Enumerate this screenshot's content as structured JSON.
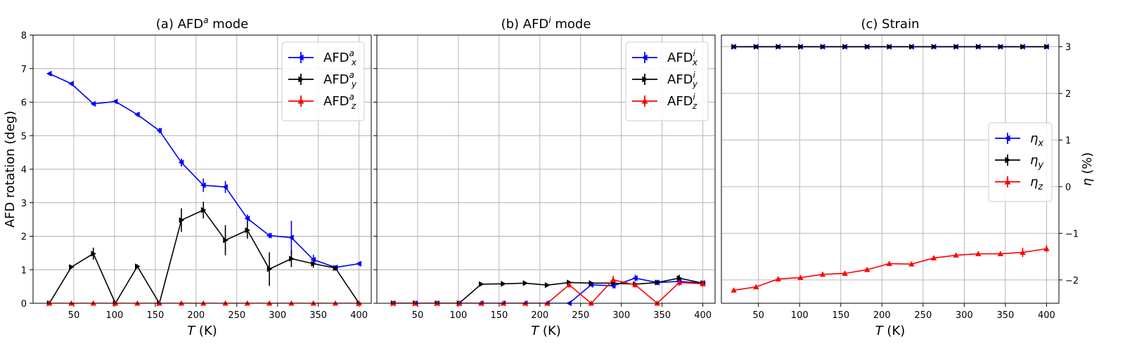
{
  "chart_data": [
    {
      "id": "a",
      "type": "line",
      "title": "(a) AFD^a mode",
      "title_parts": {
        "pre": "(a) AFD",
        "sup": "a",
        "post": " mode"
      },
      "xlabel": "T (K)",
      "xlabel_parts": {
        "var": "T",
        "unit": " (K)"
      },
      "ylabel": "AFD rotation (deg)",
      "xlim": [
        0,
        415
      ],
      "ylim": [
        0,
        8
      ],
      "xticks": [
        50,
        100,
        150,
        200,
        250,
        300,
        350,
        400
      ],
      "yticks": [
        0,
        1,
        2,
        3,
        4,
        5,
        6,
        7,
        8
      ],
      "grid": true,
      "legend_position": "top-right",
      "x": [
        20,
        47,
        74,
        101,
        128,
        155,
        182,
        209,
        236,
        263,
        290,
        317,
        344,
        371,
        400
      ],
      "series": [
        {
          "name": "AFD^a_x",
          "label_base": "AFD",
          "label_sup": "a",
          "label_sub": "x",
          "color": "#0000ff",
          "marker": "triangle-left",
          "values": [
            6.85,
            6.55,
            5.95,
            6.02,
            5.63,
            5.15,
            4.2,
            3.52,
            3.47,
            2.53,
            2.02,
            1.96,
            1.3,
            1.07,
            1.18
          ],
          "errors": [
            0.03,
            0.05,
            0.05,
            0.05,
            0.06,
            0.08,
            0.12,
            0.2,
            0.18,
            0.12,
            0.08,
            0.5,
            0.15,
            0.06,
            0.06
          ]
        },
        {
          "name": "AFD^a_y",
          "label_base": "AFD",
          "label_sup": "a",
          "label_sub": "y",
          "color": "#000000",
          "marker": "triangle-right",
          "values": [
            0.0,
            1.08,
            1.48,
            0.0,
            1.1,
            0.0,
            2.48,
            2.78,
            1.88,
            2.18,
            1.02,
            1.33,
            1.18,
            1.05,
            0.0
          ],
          "errors": [
            0.02,
            0.05,
            0.18,
            0.02,
            0.06,
            0.02,
            0.35,
            0.25,
            0.45,
            0.25,
            0.5,
            0.25,
            0.12,
            0.08,
            0.02
          ]
        },
        {
          "name": "AFD^a_z",
          "label_base": "AFD",
          "label_sup": "a",
          "label_sub": "z",
          "color": "#ff0000",
          "marker": "triangle-up",
          "values": [
            0,
            0,
            0,
            0,
            0,
            0,
            0,
            0,
            0,
            0,
            0,
            0,
            0,
            0,
            0
          ],
          "errors": [
            0.02,
            0.02,
            0.02,
            0.02,
            0.02,
            0.02,
            0.02,
            0.02,
            0.02,
            0.02,
            0.02,
            0.02,
            0.02,
            0.02,
            0.02
          ]
        }
      ]
    },
    {
      "id": "b",
      "type": "line",
      "title": "(b) AFD^i mode",
      "title_parts": {
        "pre": "(b) AFD",
        "sup": "i",
        "post": " mode"
      },
      "xlabel": "T (K)",
      "xlabel_parts": {
        "var": "T",
        "unit": " (K)"
      },
      "xlim": [
        0,
        415
      ],
      "ylim": [
        0,
        8
      ],
      "xticks": [
        50,
        100,
        150,
        200,
        250,
        300,
        350,
        400
      ],
      "yticks": [
        0,
        1,
        2,
        3,
        4,
        5,
        6,
        7,
        8
      ],
      "grid": true,
      "legend_position": "top-right",
      "x": [
        20,
        47,
        74,
        101,
        128,
        155,
        182,
        209,
        236,
        263,
        290,
        317,
        344,
        371,
        400
      ],
      "series": [
        {
          "name": "AFD^i_x",
          "label_base": "AFD",
          "label_sup": "i",
          "label_sub": "x",
          "color": "#0000ff",
          "marker": "triangle-left",
          "values": [
            0,
            0,
            0,
            0,
            0,
            0,
            0,
            0,
            0,
            0.55,
            0.52,
            0.75,
            0.62,
            0.65,
            0.6
          ],
          "errors": [
            0.02,
            0.02,
            0.02,
            0.02,
            0.02,
            0.02,
            0.02,
            0.02,
            0.02,
            0.05,
            0.08,
            0.1,
            0.08,
            0.12,
            0.08
          ]
        },
        {
          "name": "AFD^i_y",
          "label_base": "AFD",
          "label_sup": "i",
          "label_sub": "y",
          "color": "#000000",
          "marker": "triangle-right",
          "values": [
            0,
            0,
            0,
            0,
            0.57,
            0.58,
            0.6,
            0.54,
            0.62,
            0.6,
            0.6,
            0.57,
            0.62,
            0.75,
            0.6
          ],
          "errors": [
            0.02,
            0.02,
            0.02,
            0.02,
            0.03,
            0.03,
            0.03,
            0.03,
            0.04,
            0.04,
            0.06,
            0.06,
            0.06,
            0.1,
            0.06
          ]
        },
        {
          "name": "AFD^i_z",
          "label_base": "AFD",
          "label_sup": "i",
          "label_sub": "z",
          "color": "#ff0000",
          "marker": "triangle-up",
          "values": [
            0,
            0,
            0,
            0,
            0,
            0,
            0,
            0,
            0.55,
            0,
            0.7,
            0.55,
            0,
            0.62,
            0.58
          ],
          "errors": [
            0.02,
            0.02,
            0.02,
            0.02,
            0.02,
            0.02,
            0.02,
            0.02,
            0.08,
            0.02,
            0.12,
            0.08,
            0.02,
            0.08,
            0.08
          ]
        }
      ]
    },
    {
      "id": "c",
      "type": "line",
      "title": "(c) Strain",
      "xlabel": "T (K)",
      "xlabel_parts": {
        "var": "T",
        "unit": " (K)"
      },
      "ylabel": "η (%)",
      "ylabel_parts": {
        "var": "η",
        "unit": " (%)"
      },
      "y_axis_side": "right",
      "xlim": [
        5,
        415
      ],
      "ylim": [
        -2.5,
        3.25
      ],
      "xticks": [
        50,
        100,
        150,
        200,
        250,
        300,
        350,
        400
      ],
      "yticks": [
        -2,
        -1,
        0,
        1,
        2,
        3
      ],
      "ytick_labels": [
        "−2",
        "−1",
        "0",
        "1",
        "2",
        "3"
      ],
      "grid": true,
      "legend_position": "center-right",
      "x": [
        20,
        47,
        74,
        101,
        128,
        155,
        182,
        209,
        236,
        263,
        290,
        317,
        344,
        371,
        400
      ],
      "series": [
        {
          "name": "η_x",
          "label_base": "η",
          "label_sub": "x",
          "color": "#0000ff",
          "marker": "triangle-left",
          "values": [
            3,
            3,
            3,
            3,
            3,
            3,
            3,
            3,
            3,
            3,
            3,
            3,
            3,
            3,
            3
          ],
          "errors": [
            0.02,
            0.02,
            0.02,
            0.02,
            0.02,
            0.02,
            0.02,
            0.02,
            0.02,
            0.02,
            0.02,
            0.02,
            0.02,
            0.02,
            0.02
          ]
        },
        {
          "name": "η_y",
          "label_base": "η",
          "label_sub": "y",
          "color": "#000000",
          "marker": "triangle-right",
          "values": [
            3,
            3,
            3,
            3,
            3,
            3,
            3,
            3,
            3,
            3,
            3,
            3,
            3,
            3,
            3
          ],
          "errors": [
            0.02,
            0.02,
            0.02,
            0.02,
            0.02,
            0.02,
            0.02,
            0.02,
            0.02,
            0.02,
            0.02,
            0.02,
            0.02,
            0.02,
            0.02
          ]
        },
        {
          "name": "η_z",
          "label_base": "η",
          "label_sub": "z",
          "color": "#ff0000",
          "marker": "triangle-up",
          "values": [
            -2.22,
            -2.15,
            -1.98,
            -1.95,
            -1.88,
            -1.86,
            -1.78,
            -1.65,
            -1.66,
            -1.53,
            -1.47,
            -1.44,
            -1.44,
            -1.41,
            -1.33
          ],
          "errors": [
            0.04,
            0.04,
            0.05,
            0.04,
            0.05,
            0.05,
            0.05,
            0.05,
            0.05,
            0.05,
            0.05,
            0.05,
            0.05,
            0.1,
            0.08
          ]
        }
      ]
    }
  ]
}
